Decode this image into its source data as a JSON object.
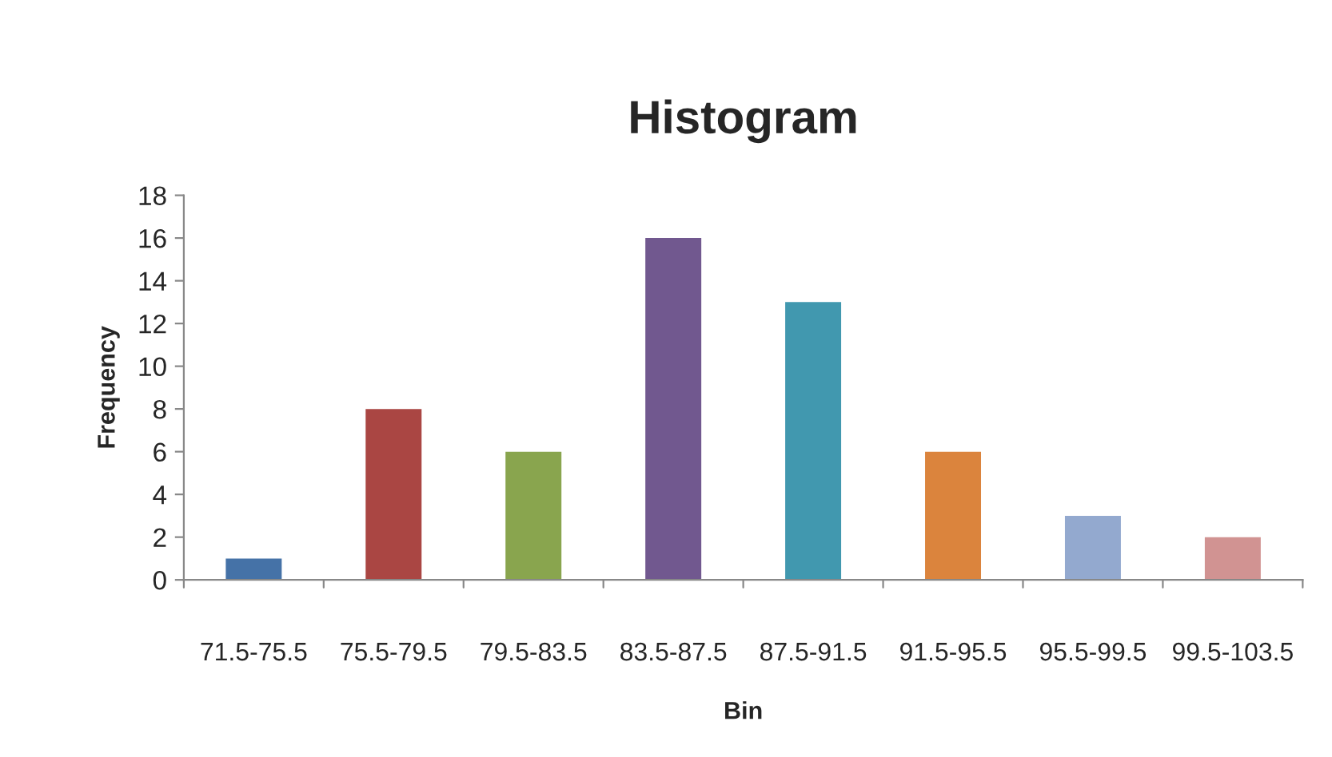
{
  "chart_data": {
    "type": "bar",
    "title": "Histogram",
    "xlabel": "Bin",
    "ylabel": "Frequency",
    "categories": [
      "71.5-75.5",
      "75.5-79.5",
      "79.5-83.5",
      "83.5-87.5",
      "87.5-91.5",
      "91.5-95.5",
      "95.5-99.5",
      "99.5-103.5"
    ],
    "values": [
      1,
      8,
      6,
      16,
      13,
      6,
      3,
      2
    ],
    "colors": [
      "#4572a7",
      "#aa4643",
      "#89a54e",
      "#71588f",
      "#4198af",
      "#db843d",
      "#93a9cf",
      "#d19392"
    ],
    "ylim": [
      0,
      18
    ],
    "yticks": [
      0,
      2,
      4,
      6,
      8,
      10,
      12,
      14,
      16,
      18
    ],
    "grid": false,
    "legend": false
  }
}
